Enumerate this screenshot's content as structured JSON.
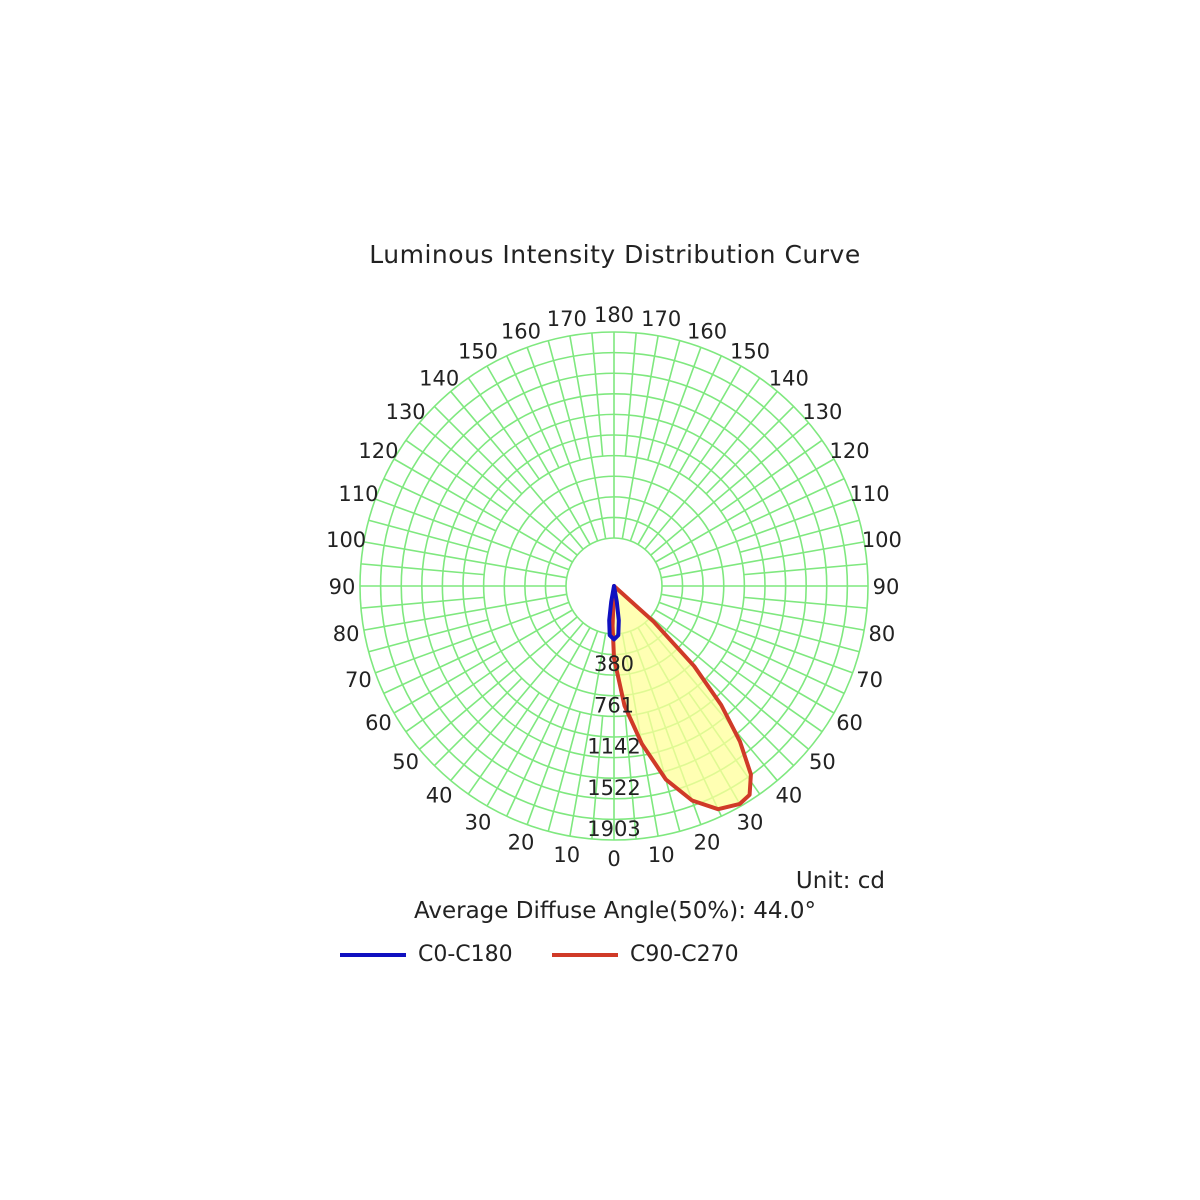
{
  "title": "Luminous Intensity Distribution Curve",
  "unit_label": "Unit: cd",
  "average_angle_text": "Average Diffuse Angle(50%): 44.0°",
  "colors": {
    "grid": "#7fe87f",
    "c0": "#1010c0",
    "c90": "#d03a28",
    "fill": "#ffff99"
  },
  "chart_data": {
    "type": "polar",
    "unit": "cd",
    "radial_ticks": [
      380,
      761,
      1142,
      1522,
      1903
    ],
    "radial_max": 1903,
    "angle_labels_right": [
      "0",
      "10",
      "20",
      "30",
      "40",
      "50",
      "60",
      "70",
      "80",
      "90",
      "100",
      "110",
      "120",
      "130",
      "140",
      "150",
      "160",
      "170",
      "180"
    ],
    "angle_labels_left": [
      "10",
      "20",
      "30",
      "40",
      "50",
      "60",
      "70",
      "80",
      "90",
      "100",
      "110",
      "120",
      "130",
      "140",
      "150",
      "160",
      "170"
    ],
    "series": [
      {
        "name": "C0-C180",
        "color": "#1010c0",
        "points": [
          {
            "angle": -12,
            "value": 0
          },
          {
            "angle": -10,
            "value": 120
          },
          {
            "angle": -8,
            "value": 260
          },
          {
            "angle": -5,
            "value": 370
          },
          {
            "angle": 0,
            "value": 400
          },
          {
            "angle": 5,
            "value": 370
          },
          {
            "angle": 8,
            "value": 260
          },
          {
            "angle": 10,
            "value": 120
          },
          {
            "angle": 12,
            "value": 0
          }
        ]
      },
      {
        "name": "C90-C270",
        "color": "#d03a28",
        "points": [
          {
            "angle": -4,
            "value": 0
          },
          {
            "angle": -2,
            "value": 300
          },
          {
            "angle": 0,
            "value": 540
          },
          {
            "angle": 5,
            "value": 900
          },
          {
            "angle": 10,
            "value": 1200
          },
          {
            "angle": 15,
            "value": 1500
          },
          {
            "angle": 20,
            "value": 1710
          },
          {
            "angle": 25,
            "value": 1845
          },
          {
            "angle": 30,
            "value": 1885
          },
          {
            "angle": 33,
            "value": 1865
          },
          {
            "angle": 36,
            "value": 1745
          },
          {
            "angle": 39,
            "value": 1500
          },
          {
            "angle": 42,
            "value": 1200
          },
          {
            "angle": 45,
            "value": 850
          },
          {
            "angle": 48,
            "value": 400
          },
          {
            "angle": 50,
            "value": 0
          }
        ]
      }
    ]
  }
}
